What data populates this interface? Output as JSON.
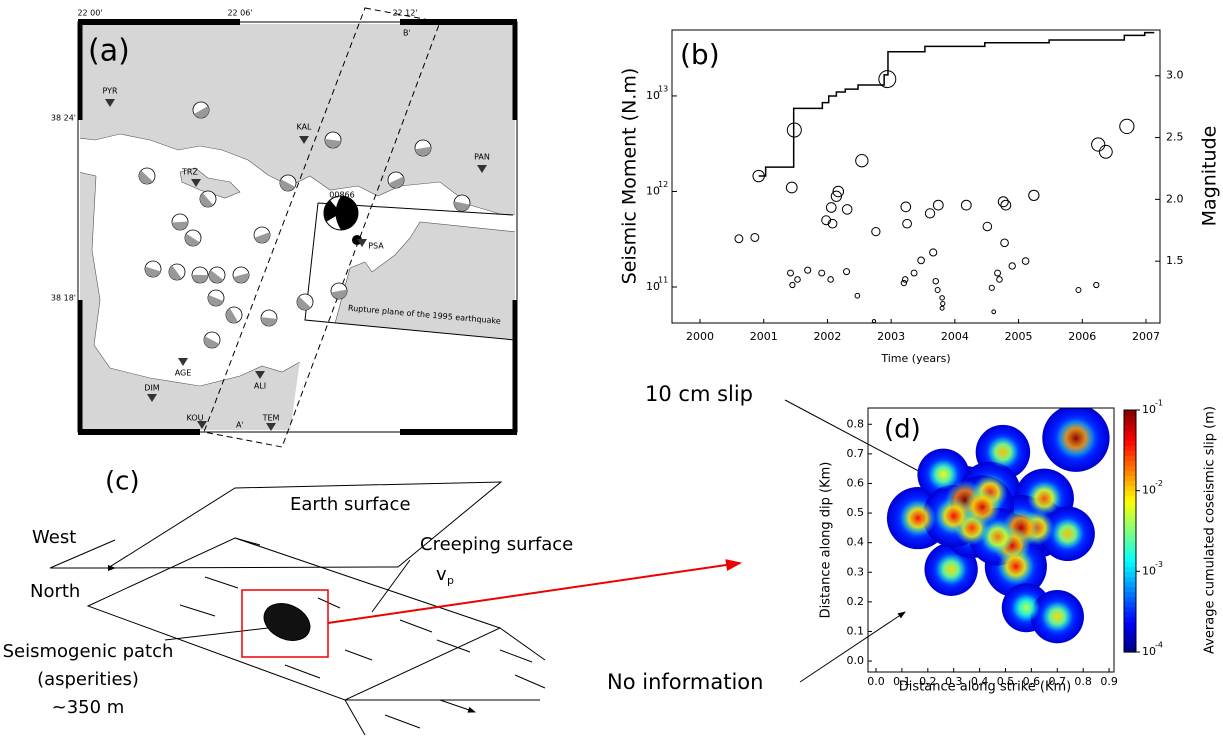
{
  "map": {
    "label": "(a)",
    "lon_ticks": [
      "22 00'",
      "22 06'",
      "22 12'"
    ],
    "lat_ticks": [
      "38 24'",
      "38 18'"
    ],
    "stations": [
      "PYR",
      "KAL",
      "PAN",
      "TRZ",
      "PSA",
      "AGE",
      "ALI",
      "DIM",
      "KOU",
      "TEM"
    ],
    "event": "00866",
    "profile_ends": [
      "B'",
      "A'"
    ],
    "rupture_label": "Rupture plane of the 1995 earthquake"
  },
  "diagram": {
    "label": "(c)",
    "earth_surface": "Earth surface",
    "west": "West",
    "north": "North",
    "creeping_surface": "Creeping surface",
    "velocity": "v",
    "velocity_subscript": "p",
    "patch": [
      "Seismogenic patch",
      "(asperities)",
      "~350 m"
    ]
  },
  "annotations": [
    "10 cm slip",
    "No information"
  ],
  "chart_data": [
    {
      "type": "scatter",
      "label": "(b)",
      "ylabel": "Seismic Moment (N.m)",
      "y2label": "Magnitude",
      "xlabel": "Time (years)",
      "color": "#000000",
      "x": [
        2000.92,
        2001.48,
        2001.44,
        2002.54,
        2002.94,
        2006.7,
        2006.25,
        2006.37,
        2000.61,
        2000.86,
        2002.17,
        2002.06,
        2001.98,
        2002.08,
        2002.31,
        2002.14,
        2002.76,
        2003.23,
        2003.25,
        2003.61,
        2003.74,
        2004.18,
        2004.51,
        2004.76,
        2004.8,
        2005.24,
        2004.78,
        2003.47,
        2003.66,
        2003.36,
        2003.22,
        2003.2,
        2001.42,
        2001.45,
        2001.53,
        2001.69,
        2001.91,
        2002.05,
        2002.3,
        2002.47,
        2003.7,
        2003.73,
        2003.8,
        2003.81,
        2003.8,
        2004.7,
        2004.67,
        2004.9,
        2005.11,
        2005.94,
        2006.22,
        2004.58,
        2004.61,
        2002.73
      ],
      "values": [
        1450000000000.0,
        4400000000000.0,
        1100000000000.0,
        2100000000000.0,
        15000000000000.0,
        4800000000000.0,
        3100000000000.0,
        2600000000000.0,
        320000000000.0,
        330000000000.0,
        1000000000000.0,
        680000000000.0,
        500000000000.0,
        460000000000.0,
        650000000000.0,
        890000000000.0,
        380000000000.0,
        690000000000.0,
        460000000000.0,
        590000000000.0,
        720000000000.0,
        720000000000.0,
        430000000000.0,
        780000000000.0,
        720000000000.0,
        910000000000.0,
        290000000000.0,
        190000000000.0,
        230000000000.0,
        140000000000.0,
        120000000000.0,
        110000000000.0,
        140000000000.0,
        105000000000.0,
        120000000000.0,
        150000000000.0,
        140000000000.0,
        120000000000.0,
        145000000000.0,
        81000000000.0,
        115000000000.0,
        93000000000.0,
        77000000000.0,
        67000000000.0,
        60000000000.0,
        120000000000.0,
        140000000000.0,
        166000000000.0,
        187000000000.0,
        93000000000.0,
        105000000000.0,
        98000000000.0,
        55000000000.0,
        44000000000.0
      ],
      "cumulative": {
        "x": [
          2000.92,
          2001.03,
          2001.03,
          2001.47,
          2001.47,
          2001.92,
          2001.92,
          2002.02,
          2002.02,
          2002.14,
          2002.14,
          2002.28,
          2002.28,
          2002.48,
          2002.48,
          2002.89,
          2002.89,
          2002.95,
          2002.95,
          2003.53,
          2003.53,
          2004.47,
          2004.47,
          2005.48,
          2005.48,
          2006.66,
          2006.66,
          2006.98,
          2006.98,
          2007.13
        ],
        "values": [
          1450000000000.0,
          1450000000000.0,
          1800000000000.0,
          1800000000000.0,
          7400000000000.0,
          7400000000000.0,
          8500000000000.0,
          8500000000000.0,
          10000000000000.0,
          10000000000000.0,
          11000000000000.0,
          11000000000000.0,
          11800000000000.0,
          11800000000000.0,
          13000000000000.0,
          13000000000000.0,
          16600000000000.0,
          16600000000000.0,
          29000000000000.0,
          29000000000000.0,
          33000000000000.0,
          33000000000000.0,
          36000000000000.0,
          36000000000000.0,
          38500000000000.0,
          38500000000000.0,
          43000000000000.0,
          43000000000000.0,
          46000000000000.0,
          46000000000000.0
        ]
      },
      "xlim": [
        1999.56,
        2007.22
      ],
      "xticks": [
        2000,
        2001,
        2002,
        2003,
        2004,
        2005,
        2006,
        2007
      ],
      "ylim": [
        42000000000.0,
        49000000000000.0
      ],
      "log_y": true,
      "yticks": [
        {
          "value": 100000000000.0,
          "label": "10",
          "exponent": "11"
        },
        {
          "value": 1000000000000.0,
          "label": "10",
          "exponent": "12"
        },
        {
          "value": 10000000000000.0,
          "label": "10",
          "exponent": "13"
        }
      ],
      "y2lim": [
        1.0,
        3.37
      ],
      "y2ticks": [
        {
          "value": 1.5,
          "label": "1.5"
        },
        {
          "value": 2,
          "label": "2.0"
        },
        {
          "value": 2.5,
          "label": "2.5"
        },
        {
          "value": 3,
          "label": "3.0"
        }
      ]
    },
    {
      "type": "heatmap",
      "label": "(d)",
      "xlabel": "Distance along strike (Km)",
      "ylabel": "Distance along dip (Km)",
      "colorbar_label": "Average cumulated coseismic slip (m)",
      "colormap": "jet",
      "log_color": true,
      "x": [
        0.344,
        0.772,
        0.49,
        0.162,
        0.26,
        0.44,
        0.65,
        0.62,
        0.56,
        0.525,
        0.74,
        0.54,
        0.29,
        0.37,
        0.3,
        0.58,
        0.7,
        0.41,
        0.47
      ],
      "y": [
        0.544,
        0.753,
        0.706,
        0.483,
        0.63,
        0.57,
        0.55,
        0.45,
        0.45,
        0.39,
        0.43,
        0.32,
        0.31,
        0.45,
        0.49,
        0.18,
        0.15,
        0.52,
        0.42
      ],
      "values": [
        0.1,
        0.09,
        0.012,
        0.04,
        0.008,
        0.035,
        0.025,
        0.03,
        0.07,
        0.05,
        0.012,
        0.04,
        0.01,
        0.03,
        0.04,
        0.005,
        0.01,
        0.05,
        0.02
      ],
      "xlim": [
        -0.031,
        0.919
      ],
      "ylim": [
        -0.037,
        0.855
      ],
      "xticks": [
        {
          "value": 0,
          "label": "0.0"
        },
        0.1,
        0.2,
        0.3,
        0.4,
        0.5,
        0.6,
        0.7,
        0.8,
        0.9
      ],
      "yticks": [
        {
          "value": 0,
          "label": "0.0"
        },
        0.1,
        0.2,
        0.3,
        0.4,
        0.5,
        0.6,
        0.7,
        0.8
      ],
      "clim": [
        0.0001,
        0.1
      ],
      "cticks": [
        {
          "value": 0.0001,
          "label": "10",
          "exponent": "-4"
        },
        {
          "value": 0.001,
          "label": "10",
          "exponent": "-3"
        },
        {
          "value": 0.01,
          "label": "10",
          "exponent": "-2"
        },
        {
          "value": 0.1,
          "label": "10",
          "exponent": "-1"
        }
      ]
    }
  ]
}
